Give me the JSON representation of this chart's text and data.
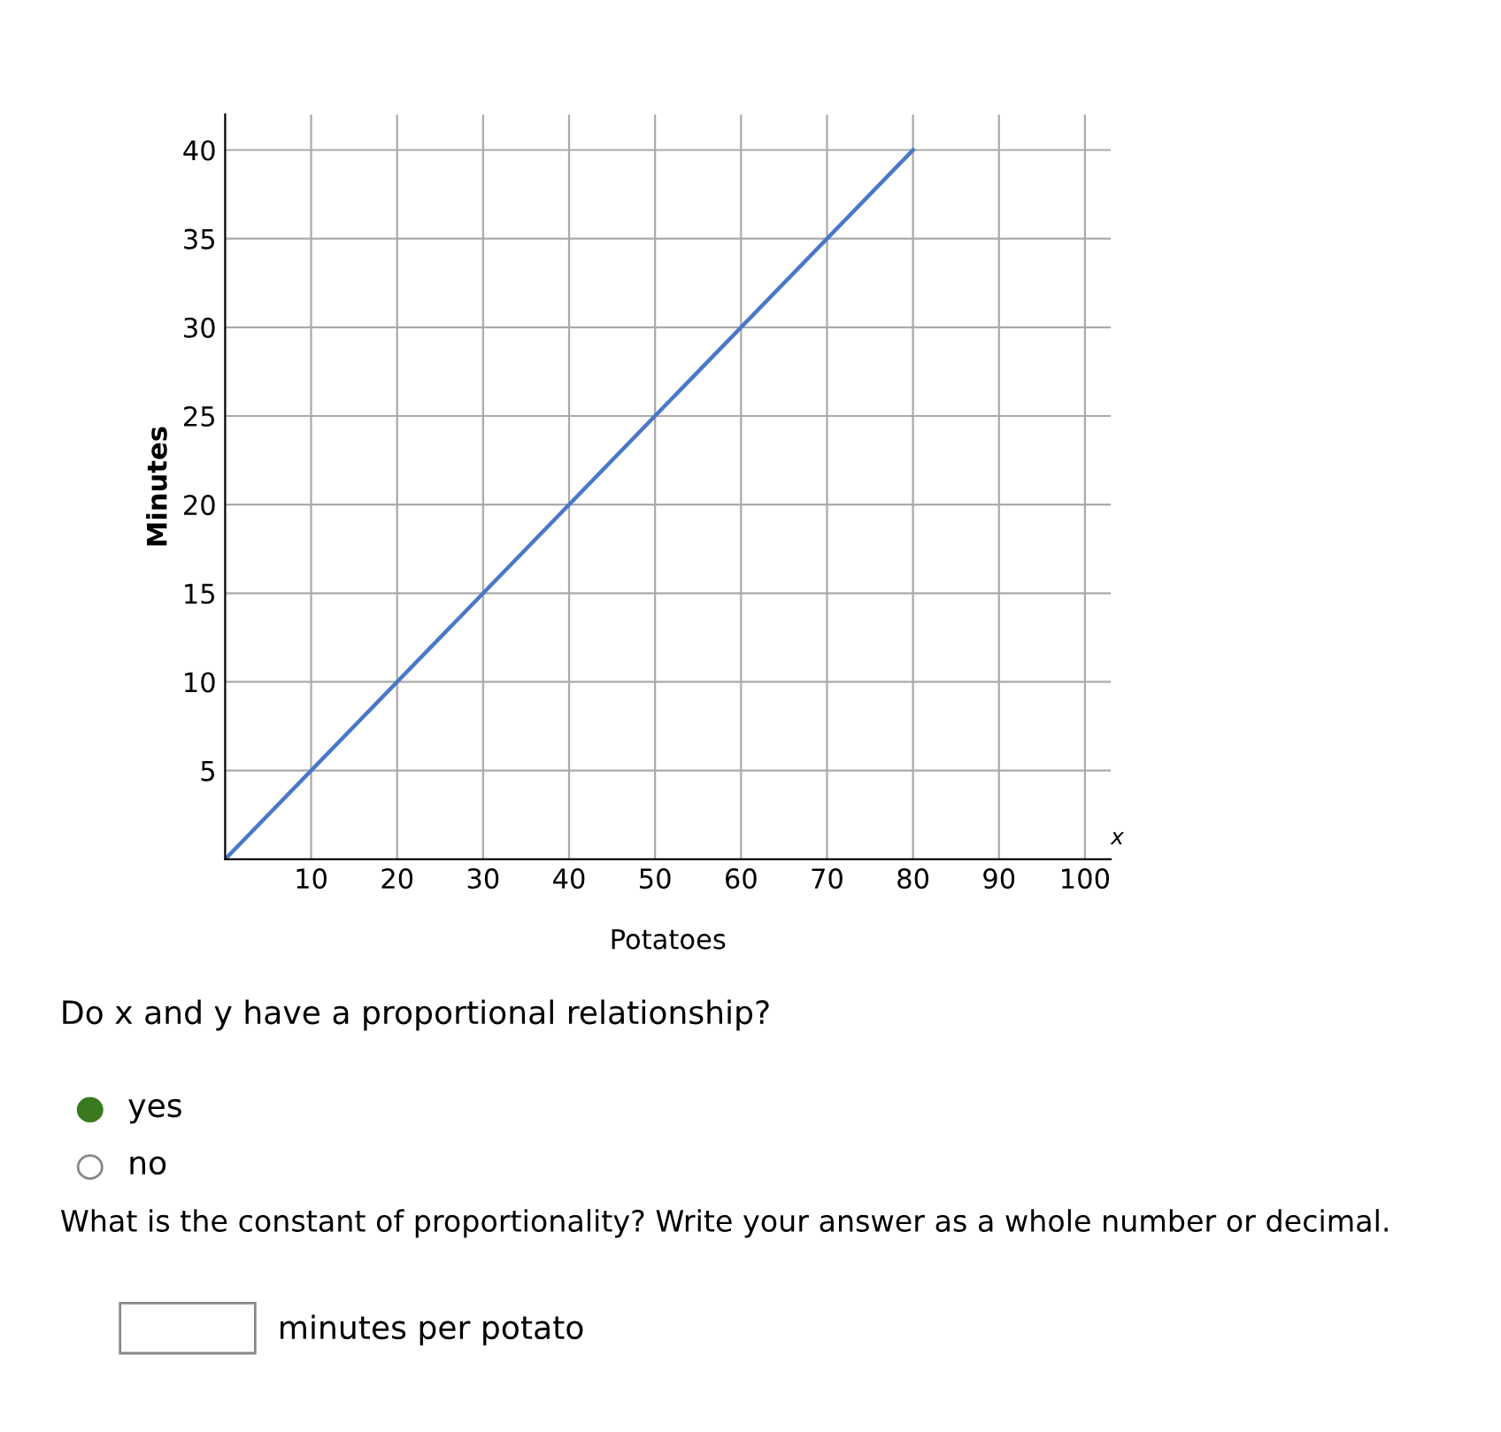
{
  "chart_data": {
    "type": "line",
    "xlabel": "Potatoes",
    "ylabel": "Minutes",
    "series": [
      {
        "color": "#4a78c8",
        "x": [
          0,
          80
        ],
        "values": [
          0,
          40
        ]
      }
    ],
    "xlim": [
      0,
      103
    ],
    "ylim": [
      0,
      42
    ],
    "xticks": [
      10,
      20,
      30,
      40,
      50,
      60,
      70,
      80,
      90,
      100
    ],
    "yticks": [
      5,
      10,
      15,
      20,
      25,
      30,
      35,
      40
    ],
    "grid": true,
    "marker": "none",
    "line_style": "solid",
    "annotations": [
      "x",
      "Do x and y have a proportional relationship?",
      "yes",
      "no",
      "What is the constant of proportionality? Write your answer as a whole number or decimal.",
      "minutes per potato"
    ]
  }
}
